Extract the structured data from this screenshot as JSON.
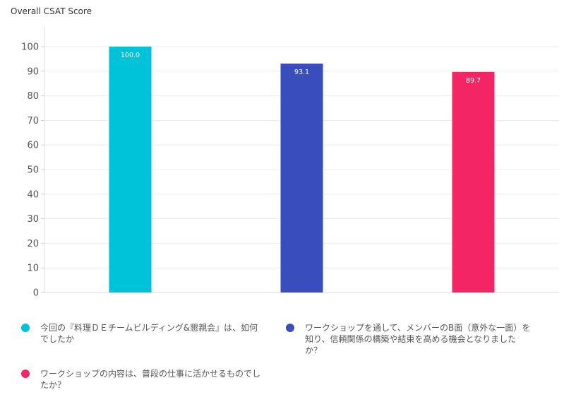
{
  "chart_data": {
    "type": "bar",
    "title": "Overall CSAT Score",
    "categories": [
      "今回の『料理ＤＥチームビルディング&懇親会』は、如何でしたか",
      "ワークショップを通して、メンバーのB面（意外な一面）を知り、信頼関係の構築や結束を高める機会となりましたか？",
      "ワークショップの内容は、普段の仕事に活かせるものでしたか？"
    ],
    "values": [
      100.0,
      93.1,
      89.7
    ],
    "data_labels": [
      "100.0",
      "93.1",
      "89.7"
    ],
    "colors": [
      "#00c2d9",
      "#3a4dbd",
      "#f32565"
    ],
    "ylim": [
      0,
      100
    ],
    "yticks": [
      0,
      10,
      20,
      30,
      40,
      50,
      60,
      70,
      80,
      90,
      100
    ],
    "grid": true,
    "legend_position": "bottom"
  }
}
